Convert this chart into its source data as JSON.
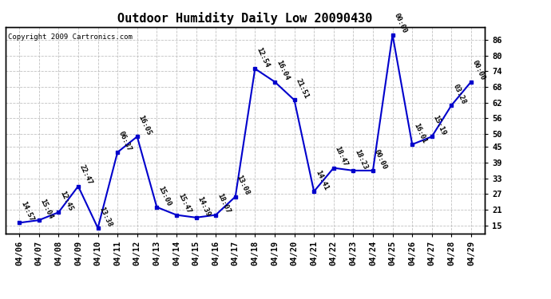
{
  "title": "Outdoor Humidity Daily Low 20090430",
  "copyright": "Copyright 2009 Cartronics.com",
  "x_labels": [
    "04/06",
    "04/07",
    "04/08",
    "04/09",
    "04/10",
    "04/11",
    "04/12",
    "04/13",
    "04/14",
    "04/15",
    "04/16",
    "04/17",
    "04/18",
    "04/19",
    "04/20",
    "04/21",
    "04/22",
    "04/23",
    "04/24",
    "04/25",
    "04/26",
    "04/27",
    "04/28",
    "04/29"
  ],
  "y_values": [
    16,
    17,
    20,
    30,
    14,
    43,
    49,
    22,
    19,
    18,
    19,
    26,
    75,
    70,
    63,
    28,
    37,
    36,
    36,
    88,
    46,
    49,
    61,
    70
  ],
  "time_labels": [
    "14:57",
    "15:04",
    "12:45",
    "22:47",
    "13:38",
    "06:37",
    "16:05",
    "15:00",
    "15:47",
    "14:39",
    "18:07",
    "13:08",
    "12:54",
    "16:04",
    "21:51",
    "14:41",
    "18:47",
    "18:23",
    "00:00",
    "00:00",
    "16:01",
    "15:19",
    "03:28",
    "00:00"
  ],
  "line_color": "#0000cc",
  "marker_color": "#0000cc",
  "background_color": "#ffffff",
  "grid_color": "#bbbbbb",
  "yticks": [
    15,
    21,
    27,
    33,
    39,
    45,
    50,
    56,
    62,
    68,
    74,
    80,
    86
  ],
  "ylim": [
    12,
    91
  ],
  "title_fontsize": 11,
  "annotation_fontsize": 6.5,
  "tick_fontsize": 7.5,
  "copyright_fontsize": 6.5
}
